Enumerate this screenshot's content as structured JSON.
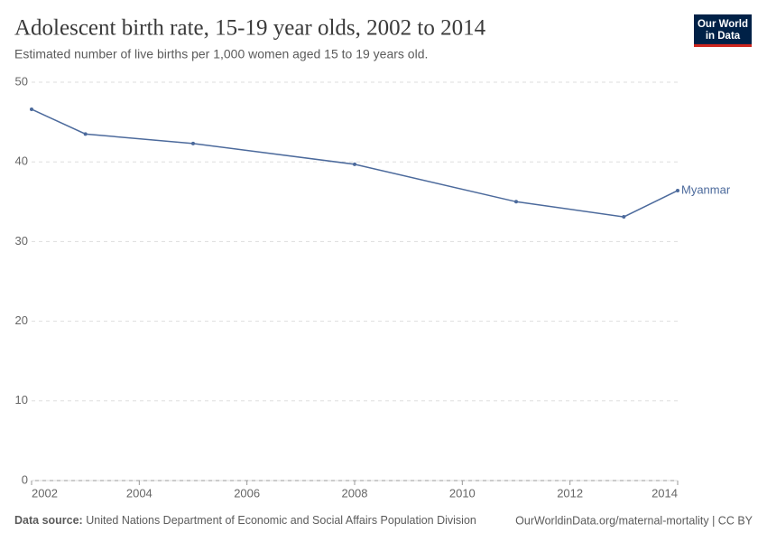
{
  "chart_data": {
    "type": "line",
    "title": "Adolescent birth rate, 15-19 year olds, 2002 to 2014",
    "subtitle": "Estimated number of live births per 1,000 women aged 15 to 19 years old.",
    "x": [
      2002,
      2003,
      2005,
      2008,
      2011,
      2013,
      2014
    ],
    "series": [
      {
        "name": "Myanmar",
        "color": "#4c6a9c",
        "values": [
          46.6,
          43.5,
          42.3,
          39.7,
          35.0,
          33.1,
          36.4
        ]
      }
    ],
    "xlim": [
      2002,
      2014
    ],
    "xticks": [
      2002,
      2004,
      2006,
      2008,
      2010,
      2012,
      2014
    ],
    "ylim": [
      0,
      50
    ],
    "yticks": [
      0,
      10,
      20,
      30,
      40,
      50
    ],
    "grid": true
  },
  "footer": {
    "source_label": "Data source:",
    "source": "United Nations Department of Economic and Social Affairs Population Division",
    "url_license": "OurWorldinData.org/maternal-mortality | CC BY"
  },
  "logo": {
    "line1": "Our World",
    "line2": "in Data"
  }
}
